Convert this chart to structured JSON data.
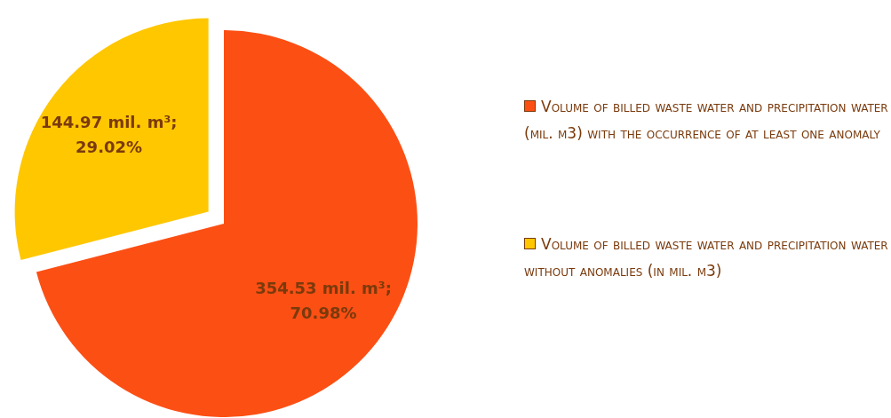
{
  "chart_data": {
    "type": "pie",
    "categories": [
      "Volume of billed waste water and precipitation water (mil. m3) with the occurrence of at least one anomaly",
      "Volume of billed waste water and precipitation water  without anomalies (in mil. m3)"
    ],
    "values": [
      354.53,
      144.97
    ],
    "colors": [
      "#fc4f14",
      "#ffc700"
    ],
    "value_labels": [
      "354.53 mil. m³; 70.98%",
      "144.97 mil. m³; 29.02%"
    ],
    "legend": "right"
  }
}
